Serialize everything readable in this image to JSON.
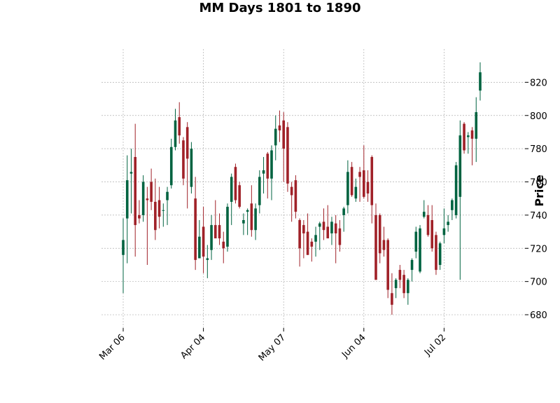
{
  "chart_data": {
    "type": "candlestick",
    "title": "MM Days 1801 to 1890",
    "xlabel": "",
    "ylabel": "Price",
    "ylim": [
      672,
      840
    ],
    "yticks": [
      680,
      700,
      720,
      740,
      760,
      780,
      800,
      820
    ],
    "xtick_labels": [
      "Mar 06",
      "Apr 04",
      "May 07",
      "Jun 04",
      "Jul 02"
    ],
    "xtick_index": [
      0,
      20,
      40,
      60,
      80
    ],
    "grid": true,
    "grid_style": "dashed",
    "y_axis_side": "right",
    "colors": {
      "up": "#006340",
      "down": "#a02128",
      "grid": "#b0b0b0"
    },
    "fields": [
      "open",
      "high",
      "low",
      "close"
    ],
    "candles": [
      [
        716,
        738,
        693,
        725
      ],
      [
        738,
        776,
        711,
        761
      ],
      [
        765,
        780,
        741,
        766
      ],
      [
        775,
        795,
        715,
        734
      ],
      [
        740,
        749,
        735,
        738
      ],
      [
        740,
        764,
        736,
        760
      ],
      [
        750,
        757,
        710,
        749
      ],
      [
        760,
        768,
        743,
        748
      ],
      [
        748,
        762,
        725,
        731
      ],
      [
        749,
        757,
        732,
        739
      ],
      [
        743,
        747,
        733,
        743
      ],
      [
        749,
        757,
        734,
        754
      ],
      [
        758,
        786,
        756,
        781
      ],
      [
        781,
        804,
        779,
        797
      ],
      [
        799,
        808,
        783,
        788
      ],
      [
        785,
        787,
        758,
        762
      ],
      [
        793,
        796,
        744,
        774
      ],
      [
        757,
        784,
        753,
        780
      ],
      [
        750,
        763,
        707,
        713
      ],
      [
        714,
        737,
        714,
        727
      ],
      [
        733,
        745,
        705,
        715
      ],
      [
        713,
        722,
        702,
        714
      ],
      [
        719,
        740,
        713,
        734
      ],
      [
        734,
        749,
        726,
        726
      ],
      [
        734,
        741,
        722,
        726
      ],
      [
        724,
        730,
        711,
        720
      ],
      [
        721,
        747,
        718,
        745
      ],
      [
        748,
        765,
        734,
        763
      ],
      [
        769,
        771,
        747,
        749
      ],
      [
        758,
        760,
        744,
        745
      ],
      [
        735,
        741,
        728,
        737
      ],
      [
        742,
        744,
        728,
        743
      ],
      [
        747,
        758,
        727,
        731
      ],
      [
        731,
        747,
        725,
        744
      ],
      [
        746,
        767,
        741,
        763
      ],
      [
        765,
        775,
        753,
        767
      ],
      [
        777,
        778,
        750,
        762
      ],
      [
        762,
        782,
        749,
        779
      ],
      [
        782,
        800,
        773,
        792
      ],
      [
        794,
        803,
        784,
        791
      ],
      [
        797,
        802,
        760,
        780
      ],
      [
        793,
        796,
        754,
        759
      ],
      [
        757,
        760,
        736,
        752
      ],
      [
        761,
        764,
        738,
        742
      ],
      [
        737,
        738,
        709,
        720
      ],
      [
        734,
        737,
        714,
        729
      ],
      [
        730,
        741,
        716,
        716
      ],
      [
        724,
        726,
        712,
        721
      ],
      [
        724,
        733,
        715,
        728
      ],
      [
        733,
        736,
        719,
        735
      ],
      [
        736,
        744,
        725,
        731
      ],
      [
        733,
        746,
        726,
        726
      ],
      [
        729,
        739,
        722,
        736
      ],
      [
        735,
        740,
        711,
        729
      ],
      [
        732,
        737,
        718,
        722
      ],
      [
        740,
        745,
        730,
        744
      ],
      [
        746,
        773,
        741,
        766
      ],
      [
        769,
        772,
        751,
        752
      ],
      [
        750,
        762,
        748,
        757
      ],
      [
        766,
        769,
        748,
        763
      ],
      [
        767,
        782,
        750,
        751
      ],
      [
        760,
        767,
        748,
        753
      ],
      [
        775,
        776,
        735,
        746
      ],
      [
        740,
        747,
        701,
        701
      ],
      [
        740,
        741,
        711,
        717
      ],
      [
        725,
        733,
        715,
        719
      ],
      [
        725,
        726,
        690,
        695
      ],
      [
        693,
        705,
        680,
        686
      ],
      [
        696,
        702,
        690,
        701
      ],
      [
        707,
        710,
        696,
        701
      ],
      [
        704,
        707,
        690,
        693
      ],
      [
        693,
        702,
        686,
        701
      ],
      [
        707,
        714,
        700,
        713
      ],
      [
        718,
        733,
        714,
        730
      ],
      [
        706,
        734,
        705,
        732
      ],
      [
        739,
        749,
        738,
        742
      ],
      [
        740,
        746,
        727,
        728
      ],
      [
        737,
        746,
        718,
        720
      ],
      [
        728,
        730,
        704,
        707
      ],
      [
        710,
        724,
        707,
        723
      ],
      [
        728,
        744,
        723,
        732
      ],
      [
        734,
        740,
        730,
        736
      ],
      [
        743,
        750,
        737,
        749
      ],
      [
        740,
        772,
        738,
        770
      ],
      [
        751,
        797,
        701,
        788
      ],
      [
        795,
        796,
        777,
        779
      ],
      [
        787,
        790,
        777,
        788
      ],
      [
        791,
        793,
        770,
        786
      ],
      [
        786,
        811,
        772,
        802
      ],
      [
        815,
        832,
        809,
        826
      ]
    ]
  }
}
